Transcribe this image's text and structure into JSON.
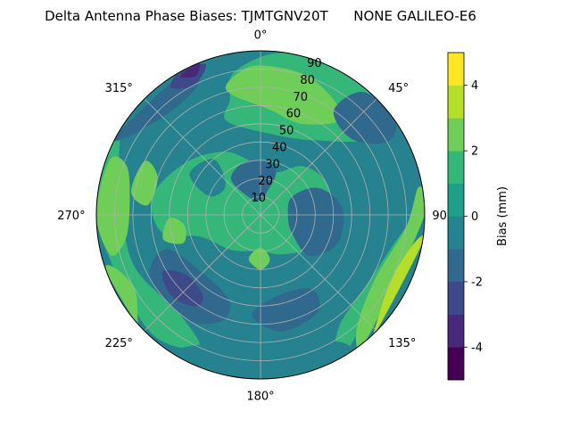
{
  "chart_data": {
    "type": "polar-contour",
    "title": "Delta Antenna Phase Biases: TJMTGNV20T      NONE GALILEO-E6",
    "azimuth_labels": [
      {
        "angle": 0,
        "text": "0°"
      },
      {
        "angle": 45,
        "text": "45°"
      },
      {
        "angle": 90,
        "text": "90"
      },
      {
        "angle": 135,
        "text": "135°"
      },
      {
        "angle": 180,
        "text": "180°"
      },
      {
        "angle": 225,
        "text": "225°"
      },
      {
        "angle": 270,
        "text": "270°"
      },
      {
        "angle": 315,
        "text": "315°"
      }
    ],
    "radial_labels": [
      "10",
      "20",
      "30",
      "40",
      "50",
      "60",
      "70",
      "80",
      "90"
    ],
    "radial_values": [
      10,
      20,
      30,
      40,
      50,
      60,
      70,
      80,
      90
    ],
    "r_max": 90,
    "colorbar": {
      "label": "Bias (mm)",
      "range": [
        -5,
        5
      ],
      "levels": [
        -5,
        -4,
        -3,
        -2,
        -1,
        0,
        1,
        2,
        3,
        4,
        5
      ],
      "ticks": [
        "-4",
        "-2",
        "0",
        "2",
        "4"
      ],
      "tick_values": [
        -4,
        -2,
        0,
        2,
        4
      ],
      "colors": [
        "#440154",
        "#482878",
        "#3e4989",
        "#31688e",
        "#26828e",
        "#1f9e89",
        "#35b779",
        "#6ece58",
        "#b5de2b",
        "#fde725"
      ]
    },
    "contour_patches": [
      {
        "level": -0.5,
        "polar": [
          [
            0,
            0
          ],
          [
            0,
            90
          ],
          [
            360,
            90
          ]
        ],
        "full": true
      },
      {
        "level": 1.5,
        "polar": [
          [
            -20,
            55
          ],
          [
            5,
            45
          ],
          [
            35,
            50
          ],
          [
            55,
            75
          ],
          [
            40,
            90
          ],
          [
            10,
            90
          ],
          [
            -10,
            80
          ],
          [
            -15,
            65
          ]
        ]
      },
      {
        "level": 1.5,
        "polar": [
          [
            95,
            80
          ],
          [
            120,
            70
          ],
          [
            145,
            75
          ],
          [
            150,
            90
          ],
          [
            90,
            90
          ]
        ]
      },
      {
        "level": 1.5,
        "polar": [
          [
            270,
            90
          ],
          [
            225,
            88
          ],
          [
            205,
            80
          ],
          [
            220,
            70
          ],
          [
            250,
            75
          ],
          [
            285,
            80
          ],
          [
            300,
            90
          ]
        ]
      },
      {
        "level": 1.5,
        "polar": [
          [
            260,
            55
          ],
          [
            280,
            60
          ],
          [
            305,
            50
          ],
          [
            330,
            40
          ],
          [
            350,
            30
          ],
          [
            20,
            25
          ],
          [
            40,
            35
          ],
          [
            60,
            40
          ],
          [
            80,
            40
          ],
          [
            100,
            40
          ],
          [
            120,
            35
          ],
          [
            150,
            25
          ],
          [
            180,
            20
          ],
          [
            220,
            25
          ],
          [
            250,
            35
          ]
        ]
      },
      {
        "level": 2.5,
        "polar": [
          [
            -15,
            70
          ],
          [
            5,
            58
          ],
          [
            25,
            55
          ],
          [
            40,
            70
          ],
          [
            20,
            80
          ],
          [
            0,
            82
          ],
          [
            -10,
            78
          ]
        ]
      },
      {
        "level": 2.5,
        "polar": [
          [
            260,
            75
          ],
          [
            275,
            72
          ],
          [
            290,
            78
          ],
          [
            290,
            88
          ],
          [
            270,
            90
          ],
          [
            255,
            85
          ]
        ]
      },
      {
        "level": 2.5,
        "polar": [
          [
            80,
            88
          ],
          [
            95,
            80
          ],
          [
            120,
            72
          ],
          [
            140,
            82
          ],
          [
            140,
            90
          ],
          [
            90,
            90
          ]
        ]
      },
      {
        "level": 3.5,
        "polar": [
          [
            100,
            86
          ],
          [
            115,
            80
          ],
          [
            130,
            85
          ],
          [
            135,
            90
          ],
          [
            100,
            90
          ]
        ]
      },
      {
        "level": 2.5,
        "polar": [
          [
            230,
            88
          ],
          [
            240,
            80
          ],
          [
            250,
            85
          ],
          [
            250,
            90
          ],
          [
            230,
            90
          ]
        ]
      },
      {
        "level": 2.5,
        "polar": [
          [
            168,
            25
          ],
          [
            180,
            18
          ],
          [
            195,
            25
          ],
          [
            180,
            30
          ]
        ]
      },
      {
        "level": 2.5,
        "polar": [
          [
            250,
            45
          ],
          [
            262,
            42
          ],
          [
            268,
            50
          ],
          [
            256,
            55
          ]
        ]
      },
      {
        "level": 2.5,
        "polar": [
          [
            275,
            62
          ],
          [
            290,
            60
          ],
          [
            295,
            70
          ],
          [
            280,
            72
          ]
        ]
      },
      {
        "level": -1.5,
        "polar": [
          [
            60,
            20
          ],
          [
            90,
            15
          ],
          [
            120,
            20
          ],
          [
            130,
            35
          ],
          [
            110,
            45
          ],
          [
            85,
            45
          ],
          [
            65,
            35
          ]
        ]
      },
      {
        "level": -1.5,
        "polar": [
          [
            330,
            10
          ],
          [
            350,
            8
          ],
          [
            10,
            10
          ],
          [
            20,
            25
          ],
          [
            0,
            30
          ],
          [
            340,
            30
          ],
          [
            320,
            25
          ]
        ]
      },
      {
        "level": -1.5,
        "polar": [
          [
            200,
            50
          ],
          [
            225,
            45
          ],
          [
            250,
            55
          ],
          [
            240,
            70
          ],
          [
            215,
            70
          ],
          [
            200,
            62
          ]
        ]
      },
      {
        "level": -2.5,
        "polar": [
          [
            215,
            55
          ],
          [
            230,
            52
          ],
          [
            240,
            62
          ],
          [
            228,
            66
          ],
          [
            216,
            62
          ]
        ]
      },
      {
        "level": -1.5,
        "polar": [
          [
            300,
            85
          ],
          [
            320,
            75
          ],
          [
            335,
            80
          ],
          [
            335,
            90
          ],
          [
            300,
            90
          ]
        ]
      },
      {
        "level": -2.5,
        "polar": [
          [
            325,
            85
          ],
          [
            333,
            80
          ],
          [
            340,
            88
          ],
          [
            330,
            90
          ]
        ]
      },
      {
        "level": -3.5,
        "polar": [
          [
            330,
            88
          ],
          [
            335,
            84
          ],
          [
            338,
            90
          ]
        ]
      },
      {
        "level": -1.5,
        "polar": [
          [
            35,
            70
          ],
          [
            50,
            65
          ],
          [
            60,
            80
          ],
          [
            55,
            90
          ],
          [
            40,
            88
          ]
        ]
      },
      {
        "level": -1.5,
        "polar": [
          [
            145,
            50
          ],
          [
            165,
            45
          ],
          [
            185,
            55
          ],
          [
            170,
            65
          ],
          [
            150,
            62
          ]
        ]
      },
      {
        "level": -0.5,
        "polar": [
          [
            150,
            80
          ],
          [
            200,
            75
          ],
          [
            210,
            88
          ],
          [
            180,
            90
          ],
          [
            150,
            90
          ]
        ]
      },
      {
        "level": -0.5,
        "polar": [
          [
            100,
            50
          ],
          [
            120,
            48
          ],
          [
            130,
            60
          ],
          [
            110,
            62
          ]
        ]
      },
      {
        "level": -0.5,
        "polar": [
          [
            290,
            30
          ],
          [
            310,
            25
          ],
          [
            320,
            40
          ],
          [
            300,
            45
          ]
        ]
      }
    ]
  }
}
